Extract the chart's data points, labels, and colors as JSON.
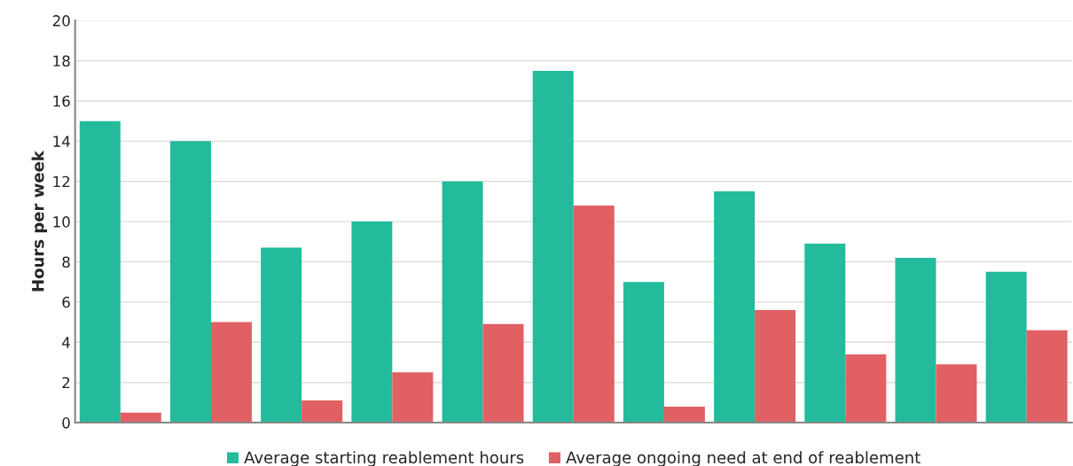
{
  "chart_data": {
    "type": "bar",
    "ylabel": "Hours per week",
    "categories": [
      null,
      null,
      null,
      null,
      null,
      null,
      null,
      null,
      null,
      null,
      null
    ],
    "series": [
      {
        "name": "Average starting reablement hours",
        "color": "#23bb9b",
        "values": [
          15,
          14,
          8.7,
          10,
          12,
          17.5,
          7,
          11.5,
          8.9,
          8.2,
          7.5
        ]
      },
      {
        "name": "Average ongoing need at end of reablement",
        "color": "#e06064",
        "values": [
          0.5,
          5,
          1.1,
          2.5,
          4.9,
          10.8,
          0.8,
          5.6,
          3.4,
          2.9,
          4.6
        ]
      }
    ],
    "ylim": [
      0,
      20
    ],
    "yticks": [
      0,
      2,
      4,
      6,
      8,
      10,
      12,
      14,
      16,
      18,
      20
    ],
    "grid": "y",
    "legend": "bottom"
  }
}
